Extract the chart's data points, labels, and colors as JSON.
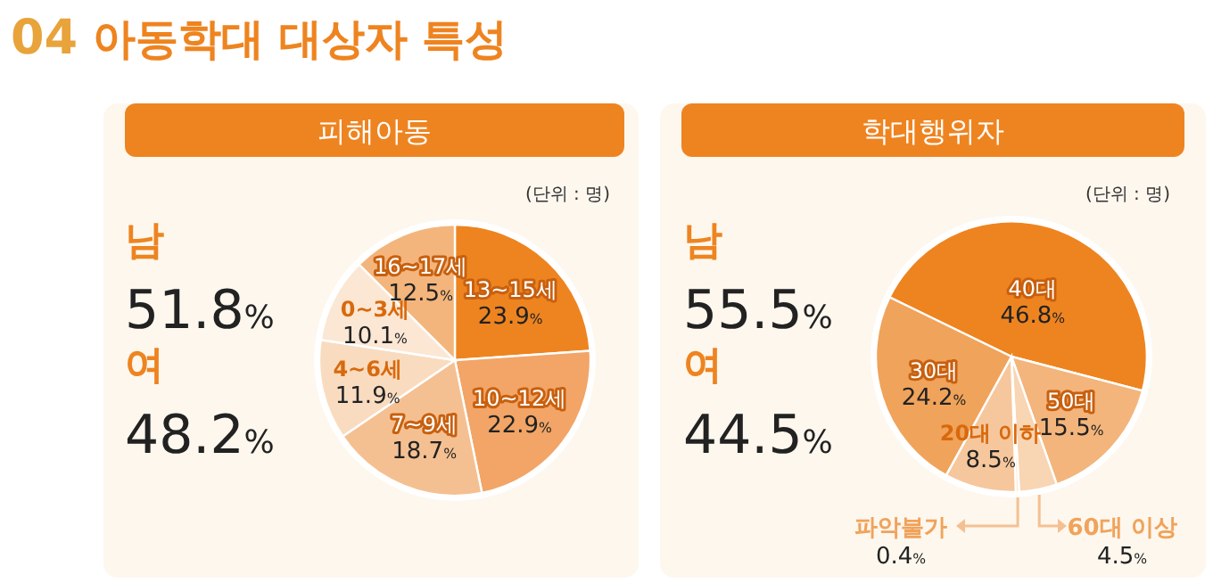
{
  "chart_data": [
    {
      "type": "other",
      "title": "04 아동학대 대상자 특성"
    },
    {
      "type": "other",
      "annotations": [
        "남",
        "51.8%",
        "여",
        "48.2%"
      ]
    },
    {
      "type": "pie",
      "title": "피해아동",
      "annotations": [
        "(단위 : 명)"
      ],
      "categories": [
        "13~15세",
        "10~12세",
        "7~9세",
        "4~6세",
        "0~3세",
        "16~17세"
      ],
      "values": [
        23.9,
        22.9,
        18.7,
        11.9,
        10.1,
        12.5
      ],
      "value_labels": [
        "23.9%",
        "22.9%",
        "18.7%",
        "11.9%",
        "10.1%",
        "12.5%"
      ],
      "colors": [
        "#ee8420",
        "#f2a566",
        "#f5c091",
        "#f9dcc0",
        "#fbe7d4",
        "#f3b57c"
      ]
    },
    {
      "type": "other",
      "annotations": [
        "남",
        "55.5%",
        "여",
        "44.5%"
      ]
    },
    {
      "type": "pie",
      "title": "학대행위자",
      "annotations": [
        "(단위 : 명)"
      ],
      "categories": [
        "40대",
        "50대",
        "60대 이상",
        "파악불가",
        "20대 이하",
        "30대"
      ],
      "values": [
        46.8,
        15.5,
        4.5,
        0.4,
        8.5,
        24.2
      ],
      "value_labels": [
        "46.8%",
        "15.5%",
        "4.5%",
        "0.4%",
        "8.5%",
        "24.2%"
      ],
      "colors": [
        "#ee8420",
        "#f3b57c",
        "#f8d5b3",
        "#fbe6d0",
        "#f6c79c",
        "#f0a35a"
      ]
    }
  ]
}
